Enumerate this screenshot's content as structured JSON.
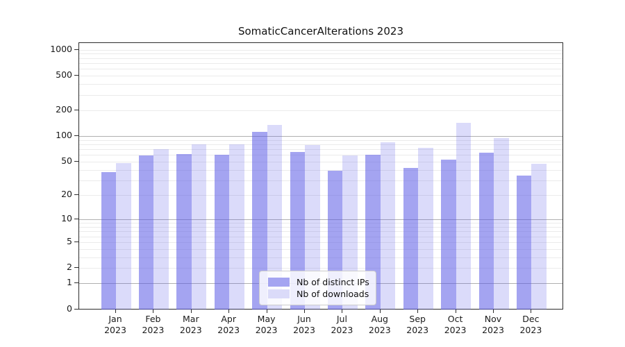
{
  "figure": {
    "title": "SomaticCancerAlterations 2023"
  },
  "chart_data": {
    "type": "bar",
    "title": "SomaticCancerAlterations 2023",
    "y_scale": "log1p",
    "grid": "horizontal",
    "legend_position": "lower center",
    "categories": [
      "Jan 2023",
      "Feb 2023",
      "Mar 2023",
      "Apr 2023",
      "May 2023",
      "Jun 2023",
      "Jul 2023",
      "Aug 2023",
      "Sep 2023",
      "Oct 2023",
      "Nov 2023",
      "Dec 2023"
    ],
    "x_tick_line1": [
      "Jan",
      "Feb",
      "Mar",
      "Apr",
      "May",
      "Jun",
      "Jul",
      "Aug",
      "Sep",
      "Oct",
      "Nov",
      "Dec"
    ],
    "x_tick_line2": "2023",
    "series": [
      {
        "name": "Nb of distinct IPs",
        "swatch_color": "#a4a4f1",
        "bar_fill": "rgba(90,90,230,0.55)",
        "values": [
          38,
          59,
          61,
          60,
          111,
          65,
          39,
          60,
          42,
          53,
          64,
          34
        ]
      },
      {
        "name": "Nb of downloads",
        "swatch_color": "#dbdbf9",
        "bar_fill": "rgba(90,90,230,0.22)",
        "values": [
          48,
          70,
          80,
          80,
          134,
          78,
          59,
          85,
          73,
          143,
          95,
          47
        ]
      }
    ],
    "y_ticks": [
      1000,
      500,
      200,
      100,
      50,
      20,
      10,
      5,
      2,
      1,
      0
    ],
    "y_major_gridlines": [
      1,
      10,
      100
    ],
    "ylim": [
      0,
      1200
    ]
  }
}
